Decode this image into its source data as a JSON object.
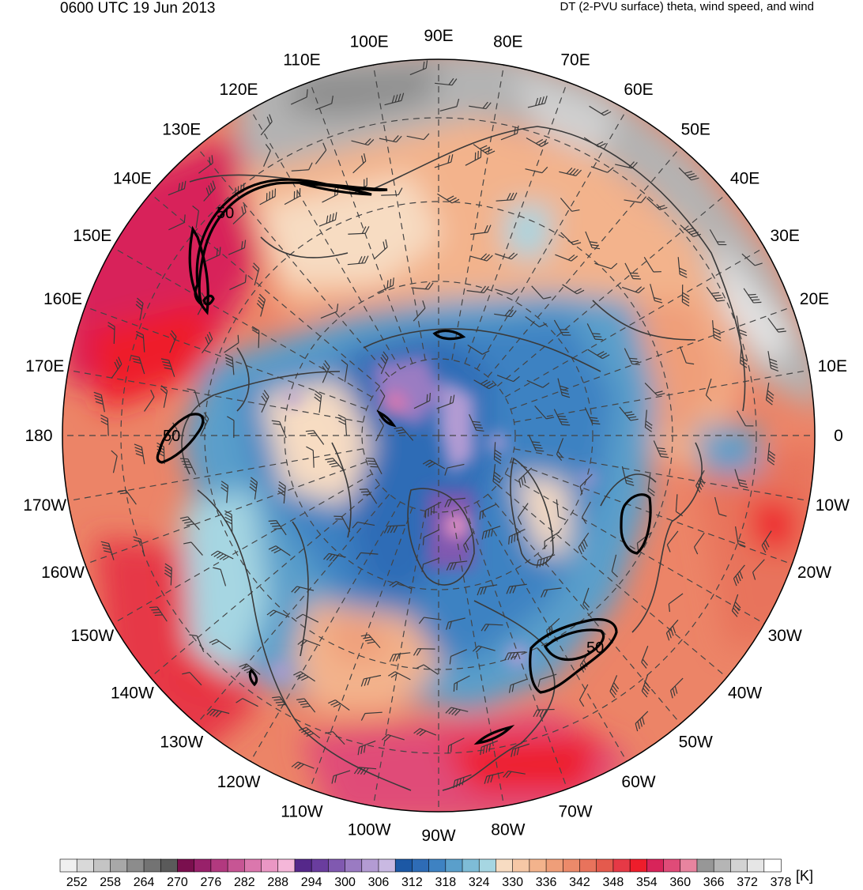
{
  "header": {
    "valid_time": "0600 UTC 19 Jun 2013",
    "field_description": "DT (2-PVU surface) theta, wind speed, and wind"
  },
  "map": {
    "projection": "north polar stereographic",
    "longitude_labels": [
      {
        "text": "90E",
        "lon": 90
      },
      {
        "text": "80E",
        "lon": 80
      },
      {
        "text": "70E",
        "lon": 70
      },
      {
        "text": "60E",
        "lon": 60
      },
      {
        "text": "50E",
        "lon": 50
      },
      {
        "text": "40E",
        "lon": 40
      },
      {
        "text": "30E",
        "lon": 30
      },
      {
        "text": "20E",
        "lon": 20
      },
      {
        "text": "10E",
        "lon": 10
      },
      {
        "text": "0",
        "lon": 0
      },
      {
        "text": "10W",
        "lon": -10
      },
      {
        "text": "20W",
        "lon": -20
      },
      {
        "text": "30W",
        "lon": -30
      },
      {
        "text": "40W",
        "lon": -40
      },
      {
        "text": "50W",
        "lon": -50
      },
      {
        "text": "60W",
        "lon": -60
      },
      {
        "text": "70W",
        "lon": -70
      },
      {
        "text": "80W",
        "lon": -80
      },
      {
        "text": "90W",
        "lon": -90
      },
      {
        "text": "100W",
        "lon": -100
      },
      {
        "text": "110W",
        "lon": -110
      },
      {
        "text": "120W",
        "lon": -120
      },
      {
        "text": "130W",
        "lon": -130
      },
      {
        "text": "140W",
        "lon": -140
      },
      {
        "text": "150W",
        "lon": -150
      },
      {
        "text": "160W",
        "lon": -160
      },
      {
        "text": "170W",
        "lon": -170
      },
      {
        "text": "180",
        "lon": 180
      },
      {
        "text": "170E",
        "lon": 170
      },
      {
        "text": "160E",
        "lon": 160
      },
      {
        "text": "150E",
        "lon": 150
      },
      {
        "text": "140E",
        "lon": 140
      },
      {
        "text": "130E",
        "lon": 130
      },
      {
        "text": "120E",
        "lon": 120
      },
      {
        "text": "110E",
        "lon": 110
      },
      {
        "text": "100E",
        "lon": 100
      }
    ],
    "wind_speed_contour_labels": [
      "50",
      "50",
      "50"
    ]
  },
  "colorbar": {
    "unit": "[K]",
    "tick_labels": [
      "252",
      "258",
      "264",
      "270",
      "276",
      "282",
      "288",
      "294",
      "300",
      "306",
      "312",
      "318",
      "324",
      "330",
      "336",
      "342",
      "348",
      "354",
      "360",
      "366",
      "372",
      "378"
    ],
    "colors": [
      "#f0f0f0",
      "#d9d9d9",
      "#c4c4c4",
      "#a8a8a8",
      "#8c8c8c",
      "#737373",
      "#5a5a5a",
      "#7a0f4e",
      "#98216a",
      "#b2397f",
      "#c75594",
      "#db77ad",
      "#ea97c4",
      "#f5b7d9",
      "#55288a",
      "#6a3d9e",
      "#8059b0",
      "#9a7bc2",
      "#b39bd3",
      "#c9b9e2",
      "#1c58a5",
      "#2e6cb6",
      "#3e82c2",
      "#5a9fcb",
      "#7ebcd7",
      "#a6d6e2",
      "#f7dcc2",
      "#f6c8a6",
      "#f3b38c",
      "#ef9e79",
      "#ec8a6a",
      "#e8735c",
      "#e45a4d",
      "#e63946",
      "#ee1d2b",
      "#d8245a",
      "#e04b78",
      "#e8849f",
      "#979797",
      "#b5b5b5",
      "#d3d3d3",
      "#e6e6e6",
      "#ffffff"
    ]
  }
}
